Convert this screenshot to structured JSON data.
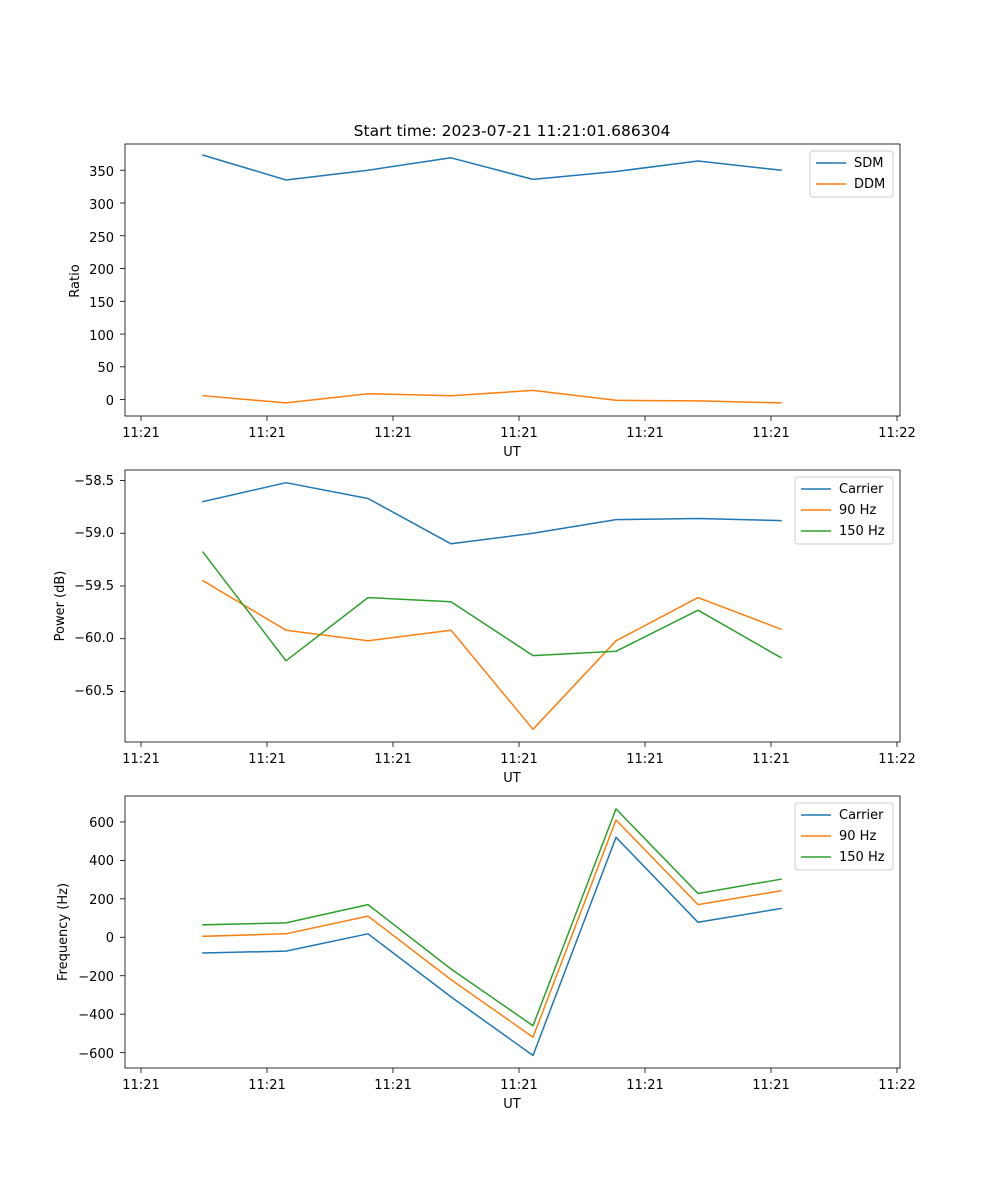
{
  "chart_data": [
    {
      "type": "line",
      "title": "Start time: 2023-07-21 11:21:01.686304",
      "xlabel": "UT",
      "ylabel": "Ratio",
      "x_ticks": [
        "11:21",
        "11:21",
        "11:21",
        "11:21",
        "11:21",
        "11:21",
        "11:22"
      ],
      "y_ticks": [
        0,
        50,
        100,
        150,
        200,
        250,
        300,
        350
      ],
      "ylim": [
        -25,
        390
      ],
      "legend": "top-right",
      "series": [
        {
          "name": "SDM",
          "color": "#1f77b4",
          "values": [
            373,
            335,
            350,
            369,
            336,
            348,
            364,
            350
          ]
        },
        {
          "name": "DDM",
          "color": "#ff7f0e",
          "values": [
            6,
            -5,
            9,
            6,
            14,
            -1,
            -2,
            -5
          ]
        }
      ]
    },
    {
      "type": "line",
      "title": "",
      "xlabel": "UT",
      "ylabel": "Power (dB)",
      "x_ticks": [
        "11:21",
        "11:21",
        "11:21",
        "11:21",
        "11:21",
        "11:21",
        "11:22"
      ],
      "y_ticks": [
        -58.5,
        -59.0,
        -59.5,
        -60.0,
        -60.5
      ],
      "y_tick_labels": [
        "−58.5",
        "−59.0",
        "−59.5",
        "−60.0",
        "−60.5"
      ],
      "ylim": [
        -60.98,
        -58.4
      ],
      "legend": "top-right",
      "series": [
        {
          "name": "Carrier",
          "color": "#1f77b4",
          "values": [
            -58.7,
            -58.52,
            -58.67,
            -59.1,
            -59.0,
            -58.87,
            -58.86,
            -58.88
          ]
        },
        {
          "name": "90 Hz",
          "color": "#ff7f0e",
          "values": [
            -59.45,
            -59.92,
            -60.02,
            -59.92,
            -60.86,
            -60.02,
            -59.61,
            -59.91
          ]
        },
        {
          "name": "150 Hz",
          "color": "#2ca02c",
          "values": [
            -59.18,
            -60.21,
            -59.61,
            -59.65,
            -60.16,
            -60.12,
            -59.73,
            -60.18
          ]
        }
      ]
    },
    {
      "type": "line",
      "title": "",
      "xlabel": "UT",
      "ylabel": "Frequency (Hz)",
      "x_ticks": [
        "11:21",
        "11:21",
        "11:21",
        "11:21",
        "11:21",
        "11:21",
        "11:22"
      ],
      "y_ticks": [
        600,
        400,
        200,
        0,
        -200,
        -400,
        -600
      ],
      "y_tick_labels": [
        "600",
        "400",
        "200",
        "0",
        "−200",
        "−400",
        "−600"
      ],
      "ylim": [
        -680,
        735
      ],
      "legend": "top-right",
      "series": [
        {
          "name": "Carrier",
          "color": "#1f77b4",
          "values": [
            -82,
            -72,
            18,
            -310,
            -615,
            520,
            78,
            150
          ]
        },
        {
          "name": "90 Hz",
          "color": "#ff7f0e",
          "values": [
            5,
            18,
            110,
            -220,
            -520,
            610,
            170,
            242
          ]
        },
        {
          "name": "150 Hz",
          "color": "#2ca02c",
          "values": [
            65,
            75,
            170,
            -165,
            -460,
            668,
            228,
            302
          ]
        }
      ]
    }
  ]
}
